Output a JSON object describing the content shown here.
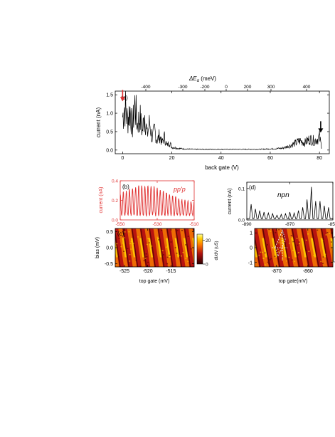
{
  "chart_data": [
    {
      "panel": "(a)",
      "type": "line",
      "top_axis_label": "ΔE_α (meV)",
      "top_ticks": [
        "-400",
        "-300",
        "-200",
        "0",
        "200",
        "300",
        "400"
      ],
      "xlabel": "back gate (V)",
      "ylabel": "current (nA)",
      "xlim": [
        -3,
        84
      ],
      "ylim": [
        -0.1,
        1.6
      ],
      "xticks": [
        0,
        20,
        40,
        60,
        80
      ],
      "yticks": [
        0.0,
        0.5,
        1.0,
        1.5
      ],
      "color": "#000000",
      "series": [
        {
          "x": [
            0,
            1,
            2,
            3,
            4,
            5,
            6,
            7,
            8,
            9,
            10,
            11,
            12,
            13,
            14,
            15,
            16,
            17,
            18,
            19,
            20,
            22,
            25,
            30,
            35,
            40,
            45,
            50,
            55,
            60,
            65,
            68,
            70,
            72,
            74,
            76,
            78,
            80,
            81
          ],
          "values": [
            0.9,
            1.2,
            0.8,
            1.1,
            0.6,
            1.25,
            0.7,
            0.9,
            0.5,
            1.0,
            0.4,
            0.75,
            0.3,
            0.55,
            0.25,
            0.4,
            0.2,
            0.35,
            0.12,
            0.22,
            0.08,
            0.05,
            0.03,
            0.02,
            0.02,
            0.02,
            0.02,
            0.02,
            0.02,
            0.03,
            0.05,
            0.12,
            0.18,
            0.25,
            0.2,
            0.3,
            0.25,
            0.35,
            0.05
          ]
        }
      ],
      "annotations": [
        {
          "type": "arrow",
          "color": "#e03030",
          "x": 0,
          "y": 1.4
        },
        {
          "type": "arrow",
          "color": "#000000",
          "x": 80.5,
          "y": 0.55
        }
      ]
    },
    {
      "panel": "(b)",
      "type": "line",
      "label": "pp'p",
      "ylabel": "current (nA)",
      "xlim": [
        -550,
        -510
      ],
      "ylim": [
        0.0,
        0.4
      ],
      "xticks": [
        -550,
        -530,
        -510
      ],
      "yticks": [
        0.0,
        0.2,
        0.4
      ],
      "color": "#e03030",
      "oscillations": 24
    },
    {
      "panel": "(c)",
      "type": "heatmap",
      "xlabel": "top gate (mV)",
      "ylabel": "bias (mV)",
      "xlim": [
        -527,
        -510
      ],
      "ylim": [
        -0.6,
        0.6
      ],
      "xticks": [
        -525,
        -520,
        -515
      ],
      "yticks": [
        -0.5,
        0.0,
        0.5
      ],
      "colorbar_label": "dI/dV (uS)",
      "colorbar_ticks": [
        0,
        20
      ],
      "colorbar_range": [
        0,
        25
      ]
    },
    {
      "panel": "(d)",
      "type": "line",
      "label": "npn",
      "ylabel": "current (nA)",
      "xlim": [
        -890,
        -850
      ],
      "ylim": [
        0.0,
        0.12
      ],
      "xticks": [
        -890,
        -870,
        -850
      ],
      "yticks": [
        0.0,
        0.1
      ],
      "color": "#000000",
      "peaks": {
        "x": [
          -888,
          -886,
          -884,
          -882,
          -880,
          -878,
          -876,
          -874,
          -872,
          -870,
          -868,
          -866,
          -864,
          -862,
          -860,
          -858,
          -856,
          -854,
          -852
        ],
        "values": [
          0.05,
          0.035,
          0.03,
          0.025,
          0.022,
          0.02,
          0.015,
          0.018,
          0.02,
          0.025,
          0.022,
          0.03,
          0.04,
          0.065,
          0.105,
          0.06,
          0.06,
          0.045,
          0.04
        ]
      }
    },
    {
      "panel": "(e)",
      "type": "heatmap",
      "xlabel": "top gate(mV)",
      "xlim": [
        -877,
        -852
      ],
      "ylim": [
        -1.3,
        1.3
      ],
      "xticks": [
        -870,
        -860
      ],
      "yticks": [
        -1,
        0,
        1
      ]
    }
  ],
  "labels": {
    "a_panel": "(a)",
    "b_panel": "(b)",
    "c_panel": "(c)",
    "d_panel": "(d)",
    "b_label": "pp'p",
    "d_label": "npn",
    "top_axis_title": "ΔE",
    "top_axis_sub": "α",
    "top_axis_unit": " (meV)",
    "a_xlabel": "back gate (V)",
    "a_ylabel": "current (nA)",
    "b_ylabel": "current (nA)",
    "c_xlabel": "top gate (mV)",
    "c_ylabel": "bias (mV)",
    "c_cbar": "dI/dV (uS)",
    "d_ylabel": "current (nA)",
    "e_xlabel": "top gate(mV)"
  }
}
